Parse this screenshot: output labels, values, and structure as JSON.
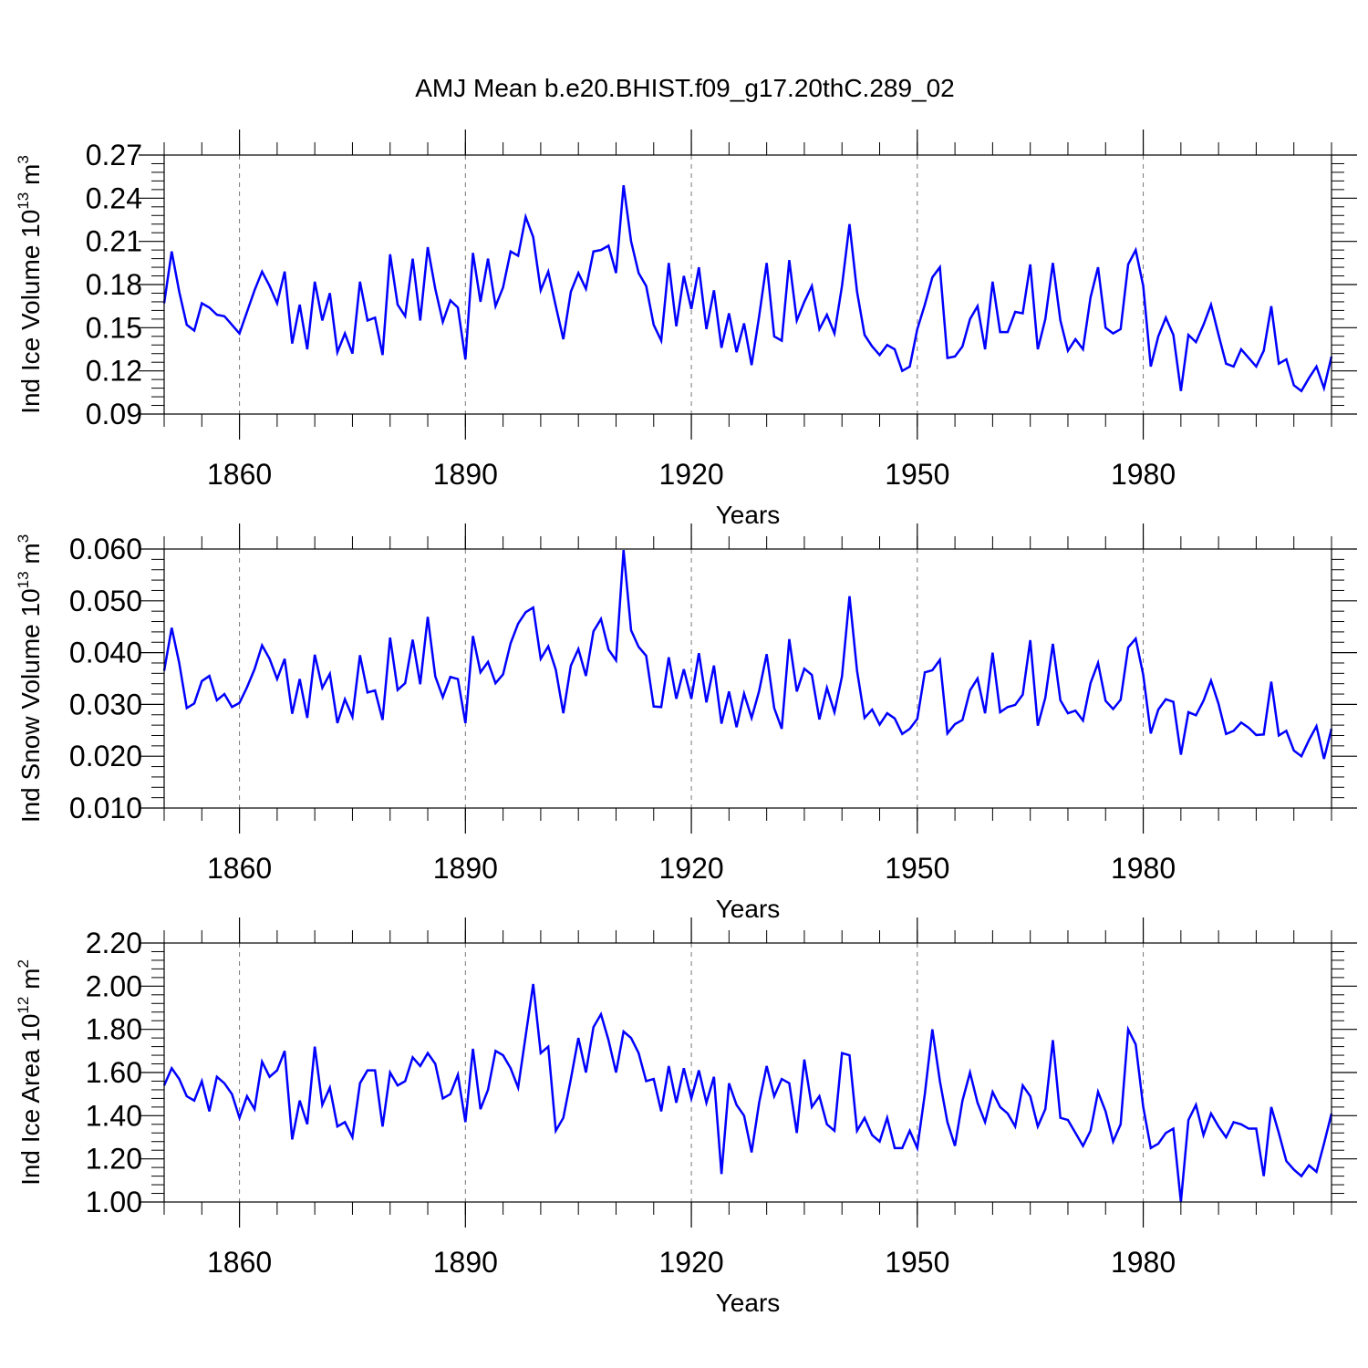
{
  "title": "AMJ Mean b.e20.BHIST.f09_g17.20thC.289_02",
  "chart_data": [
    {
      "type": "line",
      "ylabel": {
        "text": "Ind Ice Volume 10",
        "exp": "13",
        "unit": " m",
        "unit_exp": "3"
      },
      "xlabel": "Years",
      "xlim": [
        1850,
        2005
      ],
      "ylim": [
        0.09,
        0.27
      ],
      "yticks": [
        "0.09",
        "0.12",
        "0.15",
        "0.18",
        "0.21",
        "0.24",
        "0.27"
      ],
      "xticks": [
        "1860",
        "1890",
        "1920",
        "1950",
        "1980"
      ],
      "line_color": "#0000ff",
      "grid": "dashed vertical at major x ticks",
      "x_start": 1850,
      "values": [
        0.167,
        0.203,
        0.175,
        0.152,
        0.148,
        0.167,
        0.164,
        0.159,
        0.158,
        0.152,
        0.146,
        0.161,
        0.176,
        0.189,
        0.179,
        0.167,
        0.189,
        0.139,
        0.166,
        0.135,
        0.182,
        0.155,
        0.174,
        0.133,
        0.146,
        0.132,
        0.182,
        0.155,
        0.157,
        0.131,
        0.201,
        0.166,
        0.158,
        0.198,
        0.155,
        0.206,
        0.177,
        0.154,
        0.169,
        0.164,
        0.128,
        0.202,
        0.168,
        0.198,
        0.165,
        0.178,
        0.203,
        0.2,
        0.227,
        0.213,
        0.176,
        0.189,
        0.165,
        0.142,
        0.175,
        0.188,
        0.177,
        0.203,
        0.204,
        0.207,
        0.188,
        0.249,
        0.21,
        0.188,
        0.179,
        0.152,
        0.141,
        0.195,
        0.151,
        0.186,
        0.163,
        0.192,
        0.149,
        0.176,
        0.136,
        0.16,
        0.133,
        0.153,
        0.124,
        0.158,
        0.195,
        0.144,
        0.141,
        0.197,
        0.155,
        0.168,
        0.179,
        0.149,
        0.159,
        0.146,
        0.179,
        0.222,
        0.175,
        0.145,
        0.137,
        0.131,
        0.138,
        0.135,
        0.12,
        0.123,
        0.149,
        0.166,
        0.185,
        0.192,
        0.129,
        0.13,
        0.137,
        0.156,
        0.165,
        0.135,
        0.182,
        0.147,
        0.147,
        0.161,
        0.16,
        0.194,
        0.135,
        0.156,
        0.195,
        0.155,
        0.134,
        0.142,
        0.135,
        0.171,
        0.192,
        0.15,
        0.146,
        0.149,
        0.194,
        0.204,
        0.179,
        0.123,
        0.144,
        0.157,
        0.145,
        0.106,
        0.145,
        0.14,
        0.152,
        0.166,
        0.145,
        0.125,
        0.123,
        0.135,
        0.129,
        0.123,
        0.134,
        0.165,
        0.125,
        0.128,
        0.11,
        0.106,
        0.115,
        0.123,
        0.108,
        0.13
      ]
    },
    {
      "type": "line",
      "ylabel": {
        "text": "Ind Snow Volume 10",
        "exp": "13",
        "unit": " m",
        "unit_exp": "3"
      },
      "xlabel": "Years",
      "xlim": [
        1850,
        2005
      ],
      "ylim": [
        0.01,
        0.06
      ],
      "yticks": [
        "0.010",
        "0.020",
        "0.030",
        "0.040",
        "0.050",
        "0.060"
      ],
      "xticks": [
        "1860",
        "1890",
        "1920",
        "1950",
        "1980"
      ],
      "line_color": "#0000ff",
      "grid": "dashed vertical at major x ticks",
      "x_start": 1850,
      "values": [
        0.0365,
        0.0448,
        0.038,
        0.0293,
        0.0302,
        0.0345,
        0.0355,
        0.0308,
        0.032,
        0.0295,
        0.0303,
        0.0333,
        0.0368,
        0.0414,
        0.0388,
        0.0349,
        0.0388,
        0.0282,
        0.0349,
        0.0274,
        0.0396,
        0.0332,
        0.0359,
        0.0264,
        0.031,
        0.0276,
        0.0395,
        0.0323,
        0.0327,
        0.027,
        0.0429,
        0.0328,
        0.0341,
        0.0425,
        0.0339,
        0.0469,
        0.0354,
        0.0314,
        0.0353,
        0.0349,
        0.0264,
        0.0432,
        0.0362,
        0.0382,
        0.0341,
        0.0358,
        0.0418,
        0.0456,
        0.0478,
        0.0487,
        0.0388,
        0.0412,
        0.0367,
        0.0283,
        0.0375,
        0.0407,
        0.0355,
        0.0441,
        0.0465,
        0.0406,
        0.0385,
        0.0598,
        0.0443,
        0.0411,
        0.0394,
        0.0296,
        0.0295,
        0.0391,
        0.0311,
        0.0368,
        0.0311,
        0.0399,
        0.0304,
        0.0375,
        0.0263,
        0.0325,
        0.0256,
        0.0321,
        0.0274,
        0.0326,
        0.0397,
        0.0293,
        0.0253,
        0.0426,
        0.0325,
        0.0369,
        0.0357,
        0.0271,
        0.0332,
        0.0285,
        0.0354,
        0.0509,
        0.0365,
        0.0274,
        0.029,
        0.0261,
        0.0283,
        0.0273,
        0.0243,
        0.0253,
        0.0272,
        0.0362,
        0.0366,
        0.0386,
        0.0244,
        0.0262,
        0.027,
        0.0327,
        0.035,
        0.0283,
        0.04,
        0.0285,
        0.0295,
        0.0299,
        0.0319,
        0.0424,
        0.0259,
        0.0313,
        0.0417,
        0.0308,
        0.0283,
        0.0288,
        0.0269,
        0.0341,
        0.038,
        0.0307,
        0.0291,
        0.0309,
        0.041,
        0.0427,
        0.0357,
        0.0244,
        0.029,
        0.031,
        0.0305,
        0.0203,
        0.0285,
        0.0279,
        0.0307,
        0.0346,
        0.0301,
        0.0243,
        0.0249,
        0.0265,
        0.0255,
        0.0241,
        0.0242,
        0.0344,
        0.024,
        0.0249,
        0.0211,
        0.02,
        0.0231,
        0.0258,
        0.0195,
        0.0253
      ]
    },
    {
      "type": "line",
      "ylabel": {
        "text": "Ind Ice Area 10",
        "exp": "12",
        "unit": " m",
        "unit_exp": "2"
      },
      "xlabel": "Years",
      "xlim": [
        1850,
        2005
      ],
      "ylim": [
        1.0,
        2.2
      ],
      "yticks": [
        "1.00",
        "1.20",
        "1.40",
        "1.60",
        "1.80",
        "2.00",
        "2.20"
      ],
      "xticks": [
        "1860",
        "1890",
        "1920",
        "1950",
        "1980"
      ],
      "line_color": "#0000ff",
      "grid": "dashed vertical at major x ticks",
      "x_start": 1850,
      "values": [
        1.54,
        1.62,
        1.57,
        1.49,
        1.47,
        1.56,
        1.42,
        1.58,
        1.55,
        1.5,
        1.39,
        1.49,
        1.43,
        1.65,
        1.58,
        1.61,
        1.7,
        1.29,
        1.47,
        1.36,
        1.72,
        1.45,
        1.53,
        1.35,
        1.37,
        1.3,
        1.55,
        1.61,
        1.61,
        1.35,
        1.6,
        1.54,
        1.56,
        1.67,
        1.63,
        1.69,
        1.64,
        1.48,
        1.5,
        1.59,
        1.37,
        1.71,
        1.43,
        1.52,
        1.7,
        1.68,
        1.62,
        1.53,
        1.77,
        2.01,
        1.69,
        1.72,
        1.33,
        1.39,
        1.57,
        1.76,
        1.6,
        1.81,
        1.87,
        1.75,
        1.6,
        1.79,
        1.76,
        1.69,
        1.56,
        1.57,
        1.42,
        1.63,
        1.46,
        1.62,
        1.48,
        1.61,
        1.46,
        1.58,
        1.13,
        1.55,
        1.45,
        1.4,
        1.23,
        1.46,
        1.63,
        1.49,
        1.57,
        1.55,
        1.32,
        1.66,
        1.44,
        1.49,
        1.36,
        1.33,
        1.69,
        1.68,
        1.33,
        1.39,
        1.31,
        1.28,
        1.39,
        1.25,
        1.25,
        1.33,
        1.25,
        1.5,
        1.8,
        1.56,
        1.37,
        1.26,
        1.47,
        1.6,
        1.46,
        1.37,
        1.51,
        1.44,
        1.41,
        1.35,
        1.54,
        1.49,
        1.35,
        1.43,
        1.75,
        1.39,
        1.38,
        1.32,
        1.26,
        1.33,
        1.51,
        1.42,
        1.28,
        1.36,
        1.8,
        1.73,
        1.44,
        1.25,
        1.27,
        1.32,
        1.34,
        1.0,
        1.38,
        1.45,
        1.31,
        1.41,
        1.35,
        1.3,
        1.37,
        1.36,
        1.34,
        1.34,
        1.12,
        1.44,
        1.32,
        1.19,
        1.15,
        1.12,
        1.17,
        1.14,
        1.27,
        1.41
      ]
    }
  ]
}
